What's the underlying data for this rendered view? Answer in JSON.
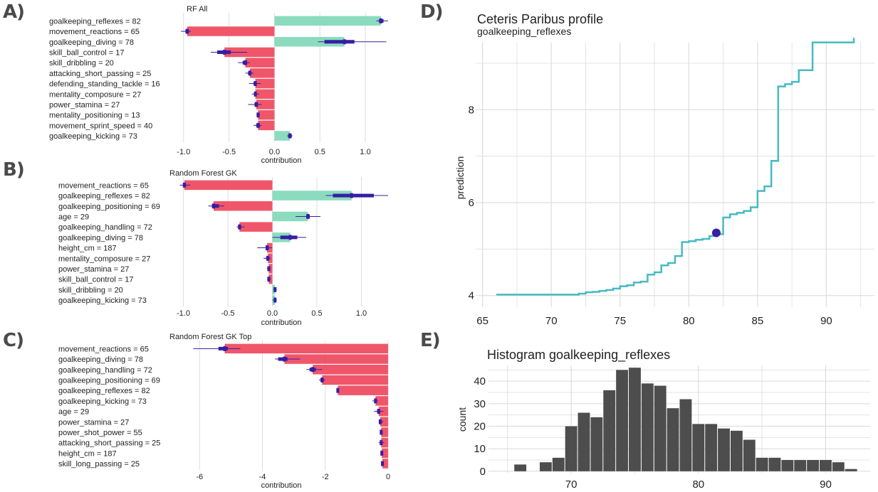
{
  "panel_labels": [
    "A)",
    "B)",
    "C)",
    "D)",
    "E)"
  ],
  "colors": {
    "negative": "#f0566a",
    "positive": "#8bdcbe",
    "interval": "#371ea3",
    "profile_line": "#46bac2",
    "hist_bar": "#4d4d4d",
    "grid": "#dddddd",
    "text": "#222222"
  },
  "chart_data": [
    {
      "type": "bar",
      "orientation": "horizontal",
      "title": "RF All",
      "xlabel": "contribution",
      "xlim": [
        -1.1,
        1.25
      ],
      "xticks": [
        -1.0,
        -0.5,
        0.0,
        0.5,
        1.0
      ],
      "xtick_labels": [
        "-1.0",
        "-0.5",
        "0.0",
        "0.5",
        "1.0"
      ],
      "categories": [
        "goalkeeping_reflexes = 82",
        "movement_reactions = 65",
        "goalkeeping_diving = 78",
        "skill_ball_control = 17",
        "skill_dribbling = 20",
        "attacking_short_passing = 25",
        "defending_standing_tackle = 16",
        "mentality_composure = 27",
        "power_stamina = 27",
        "mentality_positioning = 13",
        "movement_sprint_speed = 40",
        "goalkeeping_kicking = 73"
      ],
      "values": [
        1.17,
        -0.96,
        0.77,
        -0.55,
        -0.32,
        -0.27,
        -0.21,
        -0.21,
        -0.2,
        -0.18,
        -0.18,
        0.17
      ],
      "box_low": [
        1.15,
        -0.98,
        0.55,
        -0.63,
        -0.35,
        -0.29,
        -0.23,
        -0.22,
        -0.22,
        -0.19,
        -0.2,
        0.15
      ],
      "box_high": [
        1.2,
        -0.94,
        0.88,
        -0.48,
        -0.3,
        -0.26,
        -0.2,
        -0.2,
        -0.18,
        -0.17,
        -0.16,
        0.19
      ],
      "whisker_low": [
        1.12,
        -1.03,
        0.48,
        -0.7,
        -0.4,
        -0.32,
        -0.28,
        -0.25,
        -0.29,
        -0.2,
        -0.23,
        0.14
      ],
      "whisker_high": [
        1.25,
        -0.92,
        1.23,
        -0.3,
        -0.27,
        -0.23,
        -0.15,
        -0.17,
        -0.14,
        -0.16,
        -0.14,
        0.2
      ]
    },
    {
      "type": "bar",
      "orientation": "horizontal",
      "title": "Random Forest GK",
      "xlabel": "contribution",
      "xlim": [
        -1.1,
        1.3
      ],
      "xticks": [
        -1.0,
        -0.5,
        0.0,
        0.5,
        1.0
      ],
      "xtick_labels": [
        "-1.0",
        "-0.5",
        "0.0",
        "0.5",
        "1.0"
      ],
      "categories": [
        "movement_reactions = 65",
        "goalkeeping_reflexes = 82",
        "goalkeeping_positioning = 69",
        "age = 29",
        "goalkeeping_handling = 72",
        "goalkeeping_diving = 78",
        "height_cm = 187",
        "mentality_composure = 27",
        "power_stamina = 27",
        "skill_ball_control = 17",
        "skill_dribbling = 20",
        "goalkeeping_kicking = 73"
      ],
      "values": [
        -0.99,
        0.89,
        -0.66,
        0.4,
        -0.37,
        0.2,
        -0.06,
        -0.05,
        -0.04,
        -0.04,
        0.03,
        0.03
      ],
      "box_low": [
        -1.0,
        0.68,
        -0.68,
        0.38,
        -0.38,
        0.09,
        -0.07,
        -0.07,
        -0.05,
        -0.05,
        0.02,
        0.02
      ],
      "box_high": [
        -0.97,
        1.14,
        -0.6,
        0.42,
        -0.35,
        0.28,
        -0.04,
        -0.04,
        -0.03,
        -0.03,
        0.04,
        0.04
      ],
      "whisker_low": [
        -1.04,
        0.6,
        -0.72,
        0.26,
        -0.4,
        0.0,
        -0.17,
        -0.1,
        -0.06,
        -0.06,
        0.01,
        0.0
      ],
      "whisker_high": [
        -0.92,
        1.3,
        -0.54,
        0.54,
        -0.31,
        0.38,
        0.0,
        -0.02,
        -0.02,
        -0.02,
        0.05,
        0.05
      ]
    },
    {
      "type": "bar",
      "orientation": "horizontal",
      "title": "Random Forest GK Top",
      "xlabel": "contribution",
      "xlim": [
        -6.8,
        0.0
      ],
      "xticks": [
        -6,
        -4,
        -2,
        0
      ],
      "xtick_labels": [
        "-6",
        "-4",
        "-2",
        "0"
      ],
      "categories": [
        "movement_reactions = 65",
        "goalkeeping_diving = 78",
        "goalkeeping_handling = 72",
        "goalkeeping_positioning = 69",
        "goalkeeping_reflexes = 82",
        "goalkeeping_kicking = 73",
        "age = 29",
        "power_stamina = 27",
        "power_shot_power = 55",
        "attacking_short_passing = 25",
        "height_cm = 187",
        "skill_long_passing = 25"
      ],
      "values": [
        -5.2,
        -3.3,
        -2.4,
        -2.1,
        -1.6,
        -0.4,
        -0.3,
        -0.25,
        -0.22,
        -0.22,
        -0.2,
        -0.18
      ],
      "box_low": [
        -5.4,
        -3.5,
        -2.5,
        -2.15,
        -1.62,
        -0.42,
        -0.35,
        -0.28,
        -0.24,
        -0.25,
        -0.22,
        -0.2
      ],
      "box_high": [
        -5.1,
        -3.2,
        -2.3,
        -2.05,
        -1.58,
        -0.36,
        -0.25,
        -0.2,
        -0.2,
        -0.18,
        -0.18,
        -0.16
      ],
      "whisker_low": [
        -6.2,
        -3.6,
        -2.6,
        -2.2,
        -1.65,
        -0.5,
        -0.45,
        -0.3,
        -0.26,
        -0.3,
        -0.24,
        -0.22
      ],
      "whisker_high": [
        -4.7,
        -2.8,
        -2.1,
        -2.0,
        -1.55,
        -0.32,
        -0.15,
        -0.15,
        -0.18,
        -0.12,
        -0.16,
        -0.14
      ]
    },
    {
      "type": "line",
      "title": "Ceteris Paribus profile",
      "subtitle": "goalkeeping_reflexes",
      "xlabel": "",
      "ylabel": "prediction",
      "xlim": [
        64.5,
        93.5
      ],
      "ylim": [
        3.75,
        9.75
      ],
      "xticks": [
        65,
        70,
        75,
        80,
        85,
        90
      ],
      "yticks": [
        4,
        6,
        8
      ],
      "x": [
        66,
        71,
        72,
        72.5,
        73,
        73.5,
        74,
        74.5,
        75,
        75.5,
        76,
        76.5,
        77,
        77.5,
        78,
        78.5,
        79,
        79.5,
        80,
        80.5,
        81,
        81.5,
        82,
        82.5,
        83,
        83.5,
        84,
        84.5,
        85,
        85.5,
        86,
        86.5,
        87,
        87.5,
        88,
        88.5,
        89,
        92
      ],
      "y": [
        4.02,
        4.02,
        4.04,
        4.07,
        4.08,
        4.1,
        4.12,
        4.15,
        4.2,
        4.22,
        4.28,
        4.3,
        4.45,
        4.5,
        4.65,
        4.7,
        4.85,
        5.15,
        5.17,
        5.2,
        5.22,
        5.28,
        5.32,
        5.68,
        5.75,
        5.78,
        5.82,
        5.9,
        6.25,
        6.35,
        6.9,
        8.5,
        8.55,
        8.6,
        8.85,
        8.85,
        9.45,
        9.55
      ],
      "highlight_point": {
        "x": 82,
        "y": 5.35
      }
    },
    {
      "type": "bar",
      "title": "Histogram goalkeeping_reflexes",
      "xlabel": "",
      "ylabel": "count",
      "xlim": [
        63.5,
        93.5
      ],
      "ylim": [
        -1,
        47
      ],
      "xticks": [
        70,
        80,
        90
      ],
      "yticks": [
        0,
        10,
        20,
        30,
        40
      ],
      "bin_width": 1,
      "x": [
        66,
        67,
        68,
        69,
        70,
        71,
        72,
        73,
        74,
        75,
        76,
        77,
        78,
        79,
        80,
        81,
        82,
        83,
        84,
        85,
        86,
        87,
        88,
        89,
        90,
        91,
        92
      ],
      "values": [
        3,
        0,
        4,
        6,
        20,
        26,
        24,
        36,
        45,
        46,
        39,
        38,
        28,
        32,
        21,
        21,
        19,
        18,
        14,
        6,
        6,
        5,
        5,
        5,
        5,
        4,
        1
      ]
    }
  ]
}
